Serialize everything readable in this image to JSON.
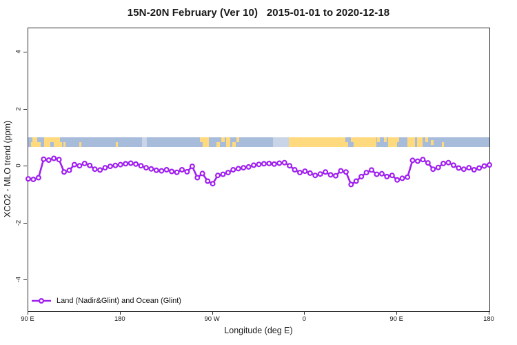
{
  "title": "15N-20N February (Ver 10)   2015-01-01 to 2020-12-18",
  "axes": {
    "x_label": "Longitude (deg E)",
    "y_label": "XCO2 - MLO trend (ppm)"
  },
  "legend": {
    "label": "Land (Nadir&Glint) and Ocean (Glint)"
  },
  "colors": {
    "series": "#A020F0",
    "marker_fill": "#ffffff",
    "ocean": "#A7BCDB",
    "land": "#FFD97E",
    "pale": "#C9D4E6",
    "axis": "#2a2a2a"
  },
  "chart_data": {
    "type": "line",
    "title": "15N-20N February (Ver 10)   2015-01-01 to 2020-12-18",
    "xlabel": "Longitude (deg E)",
    "ylabel": "XCO2 - MLO trend (ppm)",
    "xlim": [
      90,
      540
    ],
    "ylim": [
      -5.09,
      4.85
    ],
    "grid": false,
    "legend_position": "bottom-left-inside",
    "x_ticks": [
      {
        "deg": 90,
        "label": "90 E"
      },
      {
        "deg": 180,
        "label": "180"
      },
      {
        "deg": 270,
        "label": "90 W"
      },
      {
        "deg": 360,
        "label": "0"
      },
      {
        "deg": 450,
        "label": "90 E"
      },
      {
        "deg": 540,
        "label": "180"
      }
    ],
    "y_ticks": [
      {
        "value": 4,
        "label": "4"
      },
      {
        "value": 2,
        "label": "2"
      },
      {
        "value": 0,
        "label": "0"
      },
      {
        "value": -2,
        "label": "-2"
      },
      {
        "value": -4,
        "label": "-4"
      }
    ],
    "x_start_deg": 90,
    "x_step_deg": 5,
    "series": [
      {
        "name": "Land (Nadir&Glint) and Ocean (Glint)",
        "marker": "open-circle",
        "values": [
          -0.44,
          -0.46,
          -0.4,
          0.25,
          0.22,
          0.28,
          0.24,
          -0.2,
          -0.14,
          0.06,
          0.02,
          0.1,
          0.03,
          -0.1,
          -0.13,
          -0.05,
          0.0,
          0.03,
          0.06,
          0.09,
          0.11,
          0.08,
          0.02,
          -0.05,
          -0.09,
          -0.14,
          -0.16,
          -0.12,
          -0.18,
          -0.21,
          -0.12,
          -0.19,
          0.0,
          -0.4,
          -0.25,
          -0.52,
          -0.61,
          -0.32,
          -0.28,
          -0.22,
          -0.12,
          -0.08,
          -0.05,
          -0.02,
          0.04,
          0.07,
          0.09,
          0.1,
          0.08,
          0.11,
          0.13,
          0.02,
          -0.12,
          -0.22,
          -0.17,
          -0.24,
          -0.32,
          -0.27,
          -0.2,
          -0.3,
          -0.33,
          -0.16,
          -0.2,
          -0.64,
          -0.52,
          -0.36,
          -0.22,
          -0.13,
          -0.28,
          -0.26,
          -0.36,
          -0.32,
          -0.48,
          -0.42,
          -0.38,
          0.21,
          0.18,
          0.24,
          0.12,
          -0.1,
          -0.04,
          0.1,
          0.13,
          0.04,
          -0.06,
          -0.1,
          -0.05,
          -0.12,
          -0.06,
          0.01,
          0.05
        ]
      }
    ],
    "map_strip": {
      "y_range_ppm": [
        0.68,
        1.02
      ],
      "patches": [
        {
          "x": 4,
          "w": 14,
          "part": "bottom",
          "type": "land"
        },
        {
          "x": 6,
          "w": 7,
          "part": "full",
          "type": "land"
        },
        {
          "x": 23,
          "w": 26,
          "part": "full",
          "type": "land"
        },
        {
          "x": 32,
          "w": 5,
          "part": "bottom",
          "type": "ocean"
        },
        {
          "x": 46,
          "w": 3,
          "part": "top",
          "type": "ocean"
        },
        {
          "x": 51,
          "w": 3,
          "part": "bottom",
          "type": "land"
        },
        {
          "x": 74,
          "w": 3,
          "part": "bottom",
          "type": "land"
        },
        {
          "x": 127,
          "w": 3,
          "part": "bottom",
          "type": "land"
        },
        {
          "x": 165,
          "w": 7,
          "part": "full",
          "type": "pale"
        },
        {
          "x": 249,
          "w": 6,
          "part": "top",
          "type": "land"
        },
        {
          "x": 253,
          "w": 9,
          "part": "full",
          "type": "land"
        },
        {
          "x": 273,
          "w": 5,
          "part": "bottom",
          "type": "land"
        },
        {
          "x": 280,
          "w": 5,
          "part": "top",
          "type": "land"
        },
        {
          "x": 287,
          "w": 6,
          "part": "full",
          "type": "land"
        },
        {
          "x": 296,
          "w": 5,
          "part": "bottom",
          "type": "land"
        },
        {
          "x": 302,
          "w": 4,
          "part": "top",
          "type": "land"
        },
        {
          "x": 355,
          "w": 23,
          "part": "full",
          "type": "pale"
        },
        {
          "x": 378,
          "w": 82,
          "part": "full",
          "type": "land"
        },
        {
          "x": 460,
          "w": 4,
          "part": "bottom",
          "type": "land"
        },
        {
          "x": 468,
          "w": 4,
          "part": "top",
          "type": "land"
        },
        {
          "x": 472,
          "w": 33,
          "part": "full",
          "type": "land"
        },
        {
          "x": 506,
          "w": 4,
          "part": "top",
          "type": "land"
        },
        {
          "x": 516,
          "w": 4,
          "part": "top",
          "type": "land"
        },
        {
          "x": 522,
          "w": 13,
          "part": "full",
          "type": "land"
        },
        {
          "x": 535,
          "w": 3,
          "part": "top",
          "type": "land"
        },
        {
          "x": 550,
          "w": 11,
          "part": "full",
          "type": "land"
        },
        {
          "x": 564,
          "w": 8,
          "part": "full",
          "type": "land"
        },
        {
          "x": 576,
          "w": 4,
          "part": "top",
          "type": "land"
        },
        {
          "x": 584,
          "w": 4,
          "part": "mid",
          "type": "land"
        },
        {
          "x": 600,
          "w": 3,
          "part": "bottom",
          "type": "land"
        }
      ]
    }
  }
}
